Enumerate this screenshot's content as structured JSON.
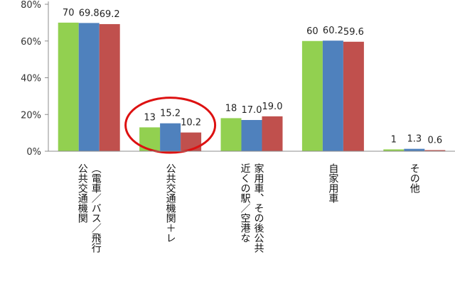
{
  "chart_data": {
    "type": "bar",
    "ylim": [
      0,
      80
    ],
    "y_ticks": [
      "0%",
      "20%",
      "40%",
      "60%",
      "80%"
    ],
    "grid": false,
    "legend": "none",
    "categories": [
      [
        "（電車／バス／飛行",
        "公共交通機関"
      ],
      [
        "公共交通機関＋レ"
      ],
      [
        "家用車、その後公共",
        "近くの駅／空港な"
      ],
      [
        "自家用車"
      ],
      [
        "その他"
      ]
    ],
    "series": [
      {
        "color": "#92d050",
        "values": [
          70,
          13,
          18,
          60,
          1
        ],
        "labels": [
          "70",
          "13",
          "18",
          "60",
          "1"
        ]
      },
      {
        "color": "#4f81bd",
        "values": [
          69.8,
          15.2,
          17.0,
          60.2,
          1.3
        ],
        "labels": [
          "69.8",
          "15.2",
          "17.0",
          "60.2",
          "1.3"
        ]
      },
      {
        "color": "#c0504d",
        "values": [
          69.2,
          10.2,
          19.0,
          59.6,
          0.6
        ],
        "labels": [
          "69.2",
          "10.2",
          "19.0",
          "59.6",
          "0.6"
        ]
      }
    ],
    "highlight": {
      "category_index": 1,
      "shape": "ellipse",
      "color": "#dd1111"
    }
  }
}
